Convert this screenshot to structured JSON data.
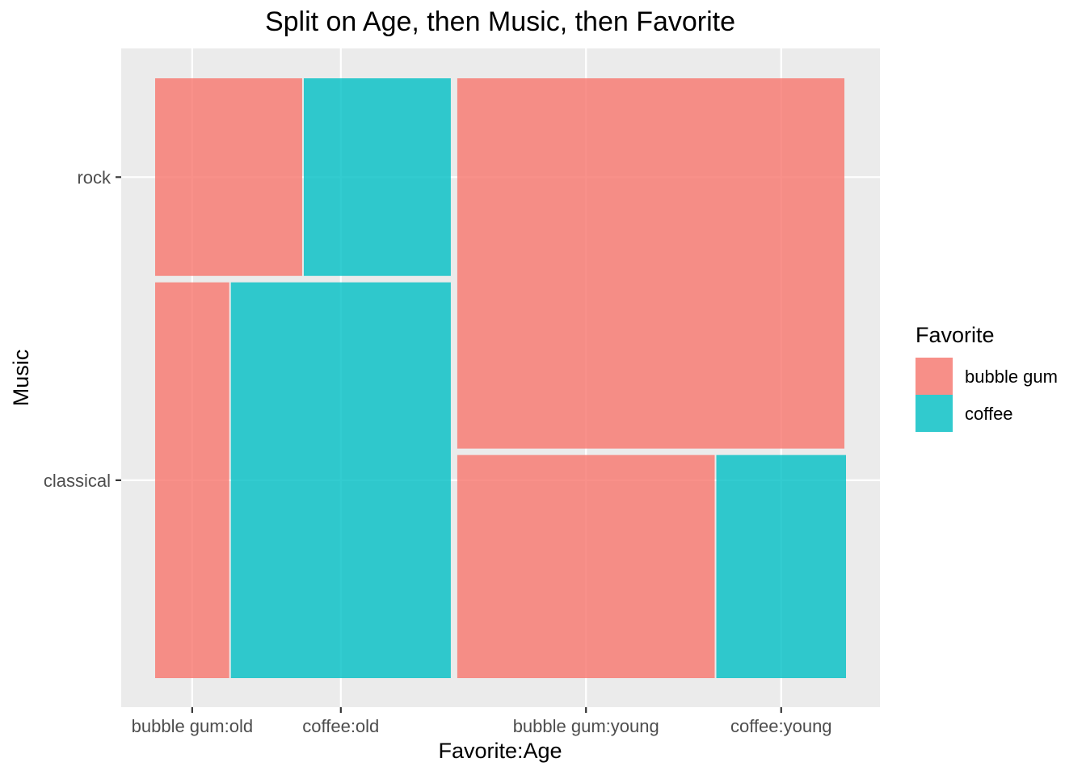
{
  "chart_data": {
    "type": "mosaic",
    "title": "Split on Age, then Music, then Favorite",
    "xlabel": "Favorite:Age",
    "ylabel": "Music",
    "x_tick_labels": [
      "bubble gum:old",
      "coffee:old",
      "bubble gum:young",
      "coffee:young"
    ],
    "y_tick_labels": [
      "classical",
      "rock"
    ],
    "legend": {
      "title": "Favorite",
      "placement": "right",
      "entries": [
        {
          "label": "bubble gum",
          "color": "#F8766D"
        },
        {
          "label": "coffee",
          "color": "#00BFC4"
        }
      ]
    },
    "grid": true,
    "panel_color": "#EBEBEB",
    "age_proportions": {
      "old": 0.432,
      "young": 0.568
    },
    "cells": [
      {
        "age": "old",
        "music": "classical",
        "music_proportion": 0.667,
        "favorite": "bubble gum",
        "proportion": 0.252
      },
      {
        "age": "old",
        "music": "classical",
        "music_proportion": 0.667,
        "favorite": "coffee",
        "proportion": 0.748
      },
      {
        "age": "old",
        "music": "rock",
        "music_proportion": 0.333,
        "favorite": "bubble gum",
        "proportion": 0.5
      },
      {
        "age": "old",
        "music": "rock",
        "music_proportion": 0.333,
        "favorite": "coffee",
        "proportion": 0.5
      },
      {
        "age": "young",
        "music": "classical",
        "music_proportion": 0.376,
        "favorite": "bubble gum",
        "proportion": 0.665
      },
      {
        "age": "young",
        "music": "classical",
        "music_proportion": 0.376,
        "favorite": "coffee",
        "proportion": 0.335
      },
      {
        "age": "young",
        "music": "rock",
        "music_proportion": 0.624,
        "favorite": "bubble gum",
        "proportion": 1.0
      },
      {
        "age": "young",
        "music": "rock",
        "music_proportion": 0.624,
        "favorite": "coffee",
        "proportion": 0.0
      }
    ]
  }
}
